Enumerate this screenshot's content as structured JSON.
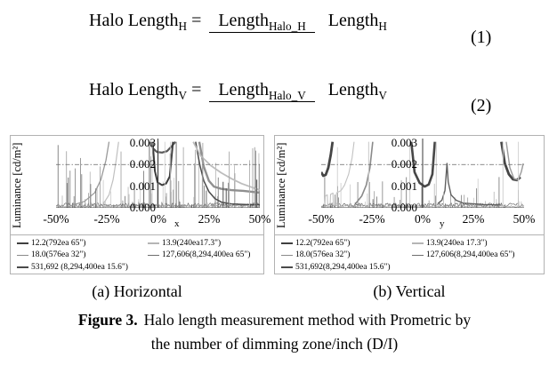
{
  "equations": [
    {
      "lhs": "Halo Length",
      "lhs_sub": "H",
      "equals": "=",
      "num": "Length",
      "num_sub": "Halo_H",
      "den": "Length",
      "den_sub": "H",
      "number": "(1)"
    },
    {
      "lhs": "Halo Length",
      "lhs_sub": "V",
      "equals": "=",
      "num": "Length",
      "num_sub": "Halo_V",
      "den": "Length",
      "den_sub": "V",
      "number": "(2)"
    }
  ],
  "figure": {
    "sub_captions": [
      "(a) Horizontal",
      "(b) Vertical"
    ],
    "caption_label": "Figure 3.",
    "caption_line1": "Halo length measurement method with Prometric by",
    "caption_line2": "the number of dimming zone/inch (D/I)"
  },
  "chart_data": [
    {
      "type": "line",
      "panel": "(a) Horizontal",
      "ylabel": "Luminance [cd/m²]",
      "xlabel": "x",
      "xticks": [
        "-50%",
        "-25%",
        "0%",
        "25%",
        "50%"
      ],
      "yticks": [
        "0.003",
        "0.002",
        "0.001",
        "0.000"
      ],
      "xlim": [
        -50,
        50
      ],
      "ylim": [
        0,
        0.003
      ],
      "threshold": 0.002,
      "legend": [
        {
          "label": "12.2(792ea 65\")",
          "color": "#3f3f3f"
        },
        {
          "label": "13.9(240ea17.3\")",
          "color": "#b5b5b5"
        },
        {
          "label": "18.0(576ea 32\")",
          "color": "#8a8a8a"
        },
        {
          "label": "127,606(8,294,400ea 65\")",
          "color": "#6e6e6e"
        },
        {
          "label": "531,692 (8,294,400ea 15.6\")",
          "color": "#4a4a4a"
        }
      ],
      "series": [
        {
          "color": "#9a9a9a",
          "width": 1.3,
          "points": [
            [
              -42,
              0.00012
            ],
            [
              -36,
              0.0003
            ],
            [
              -31,
              0.0007
            ],
            [
              -28,
              0.0013
            ],
            [
              -25.5,
              0.0022
            ],
            [
              -24,
              0.0031
            ]
          ]
        },
        {
          "color": "#c0c0c0",
          "width": 1.2,
          "points": [
            [
              -27,
              0.00015
            ],
            [
              -24,
              0.0006
            ],
            [
              -22,
              0.0013
            ],
            [
              -20.5,
              0.0022
            ],
            [
              -19.3,
              0.0031
            ]
          ]
        },
        {
          "color": "#5a5a5a",
          "width": 2.2,
          "points": [
            [
              -3.8,
              0.0031
            ],
            [
              -2.5,
              0.00275
            ],
            [
              -0.5,
              0.00258
            ],
            [
              2,
              0.00255
            ],
            [
              4.5,
              0.00262
            ],
            [
              6.8,
              0.00285
            ],
            [
              8.6,
              0.0031
            ]
          ]
        },
        {
          "color": "#3d3d3d",
          "width": 2.0,
          "points": [
            [
              -2.6,
              0.0031
            ],
            [
              -1.5,
              0.0017
            ],
            [
              -0.2,
              0.00118
            ],
            [
              2,
              0.00105
            ],
            [
              4,
              0.00112
            ],
            [
              5.8,
              0.00145
            ],
            [
              7.4,
              0.0031
            ]
          ]
        },
        {
          "color": "#4a4a4a",
          "width": 1.5,
          "points": [
            [
              18.5,
              0.0031
            ],
            [
              20.5,
              0.002
            ],
            [
              22.5,
              0.00125
            ],
            [
              25,
              0.00075
            ],
            [
              28,
              0.00042
            ],
            [
              31.5,
              0.00025
            ],
            [
              36,
              0.00018
            ],
            [
              44,
              0.00015
            ],
            [
              50,
              0.00014
            ]
          ]
        },
        {
          "color": "#8f8f8f",
          "width": 2.4,
          "points": [
            [
              20.3,
              0.0031
            ],
            [
              22.5,
              0.0019
            ],
            [
              25,
              0.00125
            ],
            [
              27.5,
              0.00098
            ],
            [
              31,
              0.00088
            ],
            [
              36,
              0.00082
            ],
            [
              42,
              0.00078
            ],
            [
              50,
              0.0007
            ]
          ]
        },
        {
          "color": "#bdbdbd",
          "width": 1.8,
          "points": [
            [
              17.3,
              0.0031
            ],
            [
              21,
              0.0024
            ],
            [
              26,
              0.00195
            ],
            [
              31,
              0.00162
            ],
            [
              36,
              0.00135
            ],
            [
              41,
              0.00112
            ],
            [
              46,
              0.00095
            ],
            [
              50,
              0.00082
            ]
          ]
        }
      ],
      "verticals": [
        {
          "x": -4.2,
          "y": 0.0031,
          "color": "#8a8a8a",
          "width": 1.2
        },
        {
          "x": 9,
          "y": 0.0031,
          "color": "#8a8a8a",
          "width": 1.2
        },
        {
          "x": -2.8,
          "y": 0.0031,
          "color": "#c8c8c8",
          "width": 0.8
        },
        {
          "x": 0.2,
          "y": 0.0031,
          "color": "#c4c4c4",
          "width": 0.8
        },
        {
          "x": 3.4,
          "y": 0.0031,
          "color": "#cccccc",
          "width": 0.8
        },
        {
          "x": 6.2,
          "y": 0.0031,
          "color": "#c8c8c8",
          "width": 0.8
        },
        {
          "x": -49,
          "y": 0.0029,
          "color": "#8a8a8a",
          "width": 1
        },
        {
          "x": -44,
          "y": 0.0014,
          "color": "#777777",
          "width": 1
        },
        {
          "x": -38,
          "y": 0.0023,
          "color": "#9a9a9a",
          "width": 1
        },
        {
          "x": -33,
          "y": 0.0011,
          "color": "#888888",
          "width": 0.9
        },
        {
          "x": -30.5,
          "y": 0.0009,
          "color": "#777777",
          "width": 0.9
        },
        {
          "x": 12.5,
          "y": 0.0028,
          "color": "#ababab",
          "width": 0.9
        },
        {
          "x": 22,
          "y": 0.003,
          "color": "#a5a5a5",
          "width": 0.9
        },
        {
          "x": 35,
          "y": 0.0026,
          "color": "#a5a5a5",
          "width": 0.9
        },
        {
          "x": 45,
          "y": 0.0022,
          "color": "#b0b0b0",
          "width": 0.9
        },
        {
          "x": 47.5,
          "y": 0.0028,
          "color": "#9e9e9e",
          "width": 0.9
        },
        {
          "x": 32,
          "y": 0.0012,
          "color": "#555555",
          "width": 1
        },
        {
          "x": 33.5,
          "y": 0.0009,
          "color": "#555555",
          "width": 1
        },
        {
          "x": 48.5,
          "y": 0.0013,
          "color": "#666666",
          "width": 1.2
        }
      ],
      "noise": {
        "seed": 5,
        "count": 120,
        "min": 0.00015,
        "max": 0.0029
      }
    },
    {
      "type": "line",
      "panel": "(b) Vertical",
      "ylabel": "Luminance [cd/m²]",
      "xlabel": "y",
      "xticks": [
        "-50%",
        "-25%",
        "0%",
        "25%",
        "50%"
      ],
      "yticks": [
        "0.003",
        "0.002",
        "0.001",
        "0.000"
      ],
      "xlim": [
        -50,
        50
      ],
      "ylim": [
        0,
        0.003
      ],
      "threshold": 0.002,
      "legend": [
        {
          "label": "12.2(792ea 65\")",
          "color": "#3f3f3f"
        },
        {
          "label": "13.9(240ea 17.3\")",
          "color": "#b5b5b5"
        },
        {
          "label": "18.0(576ea 32\")",
          "color": "#8a8a8a"
        },
        {
          "label": "127,606(8,294,400ea 65\")",
          "color": "#6e6e6e"
        },
        {
          "label": "531,692(8,294,400ea 15.6\")",
          "color": "#4a4a4a"
        }
      ],
      "series": [
        {
          "color": "#454545",
          "width": 2.8,
          "points": [
            [
              -50,
              0.00165
            ],
            [
              -49,
              0.00148
            ],
            [
              -47.8,
              0.00152
            ],
            [
              -46.5,
              0.00185
            ],
            [
              -45.3,
              0.00245
            ],
            [
              -44.4,
              0.0031
            ]
          ]
        },
        {
          "color": "#c2c2c2",
          "width": 1.1,
          "points": [
            [
              -48.2,
              0.00012
            ],
            [
              -48,
              0.00055
            ],
            [
              -47,
              0.0006
            ],
            [
              -46.8,
              0.00012
            ],
            [
              -45.6,
              0.00013
            ],
            [
              -45.4,
              0.00062
            ],
            [
              -44.2,
              0.00068
            ],
            [
              -44,
              0.00012
            ],
            [
              -42.6,
              0.00013
            ],
            [
              -42.4,
              0.0007
            ],
            [
              -41.2,
              0.00075
            ],
            [
              -40.2,
              0.0008
            ],
            [
              -38.5,
              0.00105
            ],
            [
              -36.5,
              0.00155
            ],
            [
              -34.8,
              0.0023
            ],
            [
              -33.8,
              0.0031
            ]
          ]
        },
        {
          "color": "#8a8a8a",
          "width": 1.6,
          "points": [
            [
              -33,
              0.0002
            ],
            [
              -30,
              0.00055
            ],
            [
              -27.8,
              0.00105
            ],
            [
              -26,
              0.00185
            ],
            [
              -24.6,
              0.0031
            ]
          ]
        },
        {
          "color": "#474747",
          "width": 2.6,
          "points": [
            [
              -5.6,
              0.0031
            ],
            [
              -4,
              0.00165
            ],
            [
              -1.5,
              0.00115
            ],
            [
              1,
              0.00098
            ],
            [
              3,
              0.00108
            ],
            [
              4.8,
              0.00155
            ],
            [
              6,
              0.0031
            ]
          ]
        },
        {
          "color": "#606060",
          "width": 1.4,
          "points": [
            [
              7.5,
              0.0002
            ],
            [
              9.5,
              0.00035
            ],
            [
              11,
              0.0008
            ],
            [
              12,
              0.00205
            ],
            [
              12.6,
              0.0012
            ],
            [
              14,
              0.0006
            ],
            [
              16.5,
              0.00035
            ],
            [
              20,
              0.00022
            ],
            [
              30,
              0.00015
            ],
            [
              38,
              0.00013
            ]
          ]
        },
        {
          "color": "#454545",
          "width": 2.8,
          "points": [
            [
              38.8,
              0.0031
            ],
            [
              40.5,
              0.00205
            ],
            [
              42.5,
              0.00155
            ],
            [
              44.5,
              0.00132
            ],
            [
              46.5,
              0.00128
            ],
            [
              48.2,
              0.00142
            ]
          ]
        },
        {
          "color": "#9a9a9a",
          "width": 1.4,
          "points": [
            [
              41.2,
              0.0031
            ],
            [
              43,
              0.00185
            ],
            [
              45,
              0.00135
            ],
            [
              47,
              0.00128
            ],
            [
              48.6,
              0.00165
            ],
            [
              49.6,
              0.00205
            ]
          ]
        }
      ],
      "verticals": [
        {
          "x": -42,
          "y": 0.0028,
          "color": "#cfcfcf",
          "width": 0.9
        },
        {
          "x": -40.3,
          "y": 0.00115,
          "color": "#cfcfcf",
          "width": 0.9
        },
        {
          "x": -26.6,
          "y": 0.0031,
          "color": "#c8c8c8",
          "width": 1
        },
        {
          "x": -6.3,
          "y": 0.0031,
          "color": "#cccccc",
          "width": 0.9
        },
        {
          "x": 6.7,
          "y": 0.0031,
          "color": "#c4c4c4",
          "width": 0.9
        },
        {
          "x": 10.3,
          "y": 0.00075,
          "color": "#bbbbbb",
          "width": 0.8
        },
        {
          "x": 39.6,
          "y": 0.0031,
          "color": "#d0d0d0",
          "width": 1
        },
        {
          "x": 47.2,
          "y": 0.0031,
          "color": "#cfcfcf",
          "width": 0.9
        },
        {
          "x": 20.5,
          "y": 0.0006,
          "color": "#999999",
          "width": 0.8
        },
        {
          "x": -14,
          "y": 0.0005,
          "color": "#888888",
          "width": 0.8
        }
      ],
      "noise": {
        "seed": 12,
        "count": 70,
        "min": 0.00015,
        "max": 0.0016
      }
    }
  ]
}
